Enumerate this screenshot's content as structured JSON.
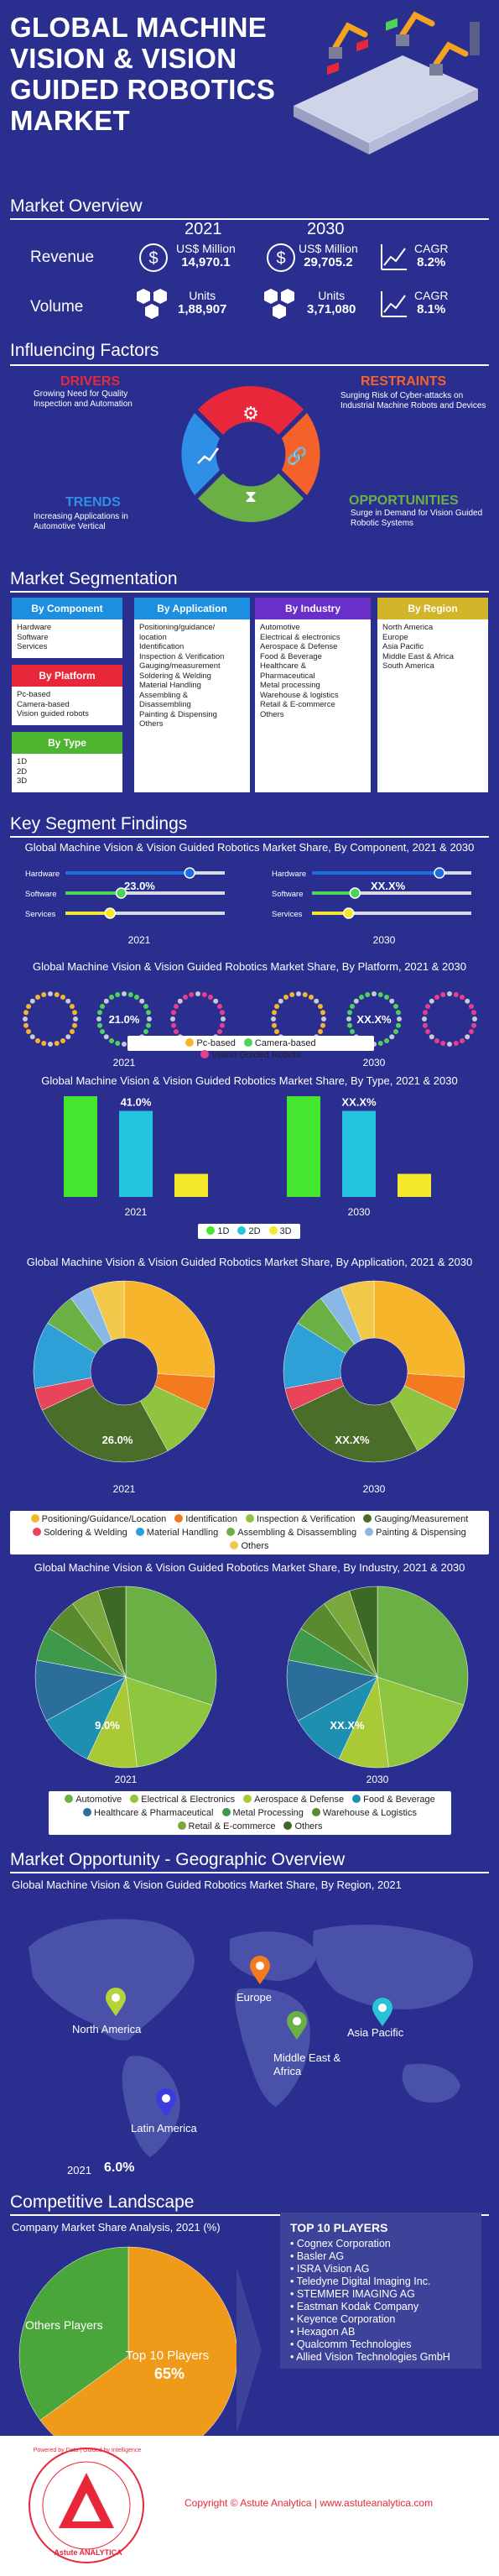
{
  "title_lines": [
    "GLOBAL MACHINE",
    "VISION & VISION",
    "GUIDED ROBOTICS",
    "MARKET"
  ],
  "overview": {
    "heading": "Market Overview",
    "year_a": "2021",
    "year_b": "2030",
    "revenue_label": "Revenue",
    "volume_label": "Volume",
    "revenue_unit": "US$ Million",
    "volume_unit": "Units",
    "revenue_2021": "14,970.1",
    "revenue_2030": "29,705.2",
    "volume_2021": "1,88,907",
    "volume_2030": "3,71,080",
    "cagr_label": "CAGR",
    "revenue_cagr": "8.2%",
    "volume_cagr": "8.1%"
  },
  "factors": {
    "heading": "Influencing Factors",
    "drivers_title": "DRIVERS",
    "drivers_text": "Growing Need for Quality Inspection and Automation",
    "restraints_title": "RESTRAINTS",
    "restraints_text": "Surging Risk of Cyber-attacks on Industrial Machine Robots and Devices",
    "trends_title": "TRENDS",
    "trends_text": "Increasing Applications in Automotive Vertical",
    "opportunities_title": "OPPORTUNITIES",
    "opportunities_text": "Surge in Demand for Vision Guided Robotic Systems",
    "colors": {
      "drivers": "#e8283a",
      "restraints": "#f4622a",
      "trends": "#2f8fe6",
      "opportunities": "#6ab045"
    }
  },
  "segmentation": {
    "heading": "Market Segmentation",
    "by_component": "By Component",
    "component_items": [
      "Hardware",
      "Software",
      "Services"
    ],
    "by_platform": "By Platform",
    "platform_items": [
      "Pc-based",
      "Camera-based",
      "Vision guided robots"
    ],
    "by_type": "By Type",
    "type_items": [
      "1D",
      "2D",
      "3D"
    ],
    "by_application": "By Application",
    "application_items": [
      "Positioning/guidance/",
      "location",
      "Identification",
      "Inspection & Verification",
      "Gauging/measurement",
      "Soldering & Welding",
      "Material Handling",
      "Assembling &",
      "Disassembling",
      "Painting & Dispensing",
      "Others"
    ],
    "by_industry": "By Industry",
    "industry_items": [
      "Automotive",
      "Electrical & electronics",
      "Aerospace & Defense",
      "Food & Beverage",
      "Healthcare &",
      "Pharmaceutical",
      "Metal processing",
      "Warehouse & logistics",
      "Retail & E-commerce",
      "Others"
    ],
    "by_region": "By Region",
    "region_items": [
      "North America",
      "Europe",
      "Asia Pacific",
      "Middle East & Africa",
      "South America"
    ]
  },
  "findings": {
    "heading": "Key Segment Findings",
    "year_a": "2021",
    "year_b": "2030",
    "hidden_value": "XX.X%"
  },
  "chart_data": [
    {
      "type": "bar",
      "title": "Global Machine Vision & Vision Guided Robotics Market Share, By Component, 2021 & 2030",
      "categories": [
        "Hardware",
        "Software",
        "Services"
      ],
      "labeled_value": "23.0%",
      "series": [
        {
          "values": [
            0.78,
            0.35,
            0.28
          ]
        },
        {
          "values": [
            0.8,
            0.27,
            0.23
          ]
        }
      ]
    },
    {
      "type": "pie",
      "title": "Global Machine Vision & Vision Guided Robotics Market Share, By Platform, 2021 & 2030",
      "categories": [
        "Pc-based",
        "Camera-based",
        "Vision Guided Robots"
      ],
      "colors": [
        "#f7b52b",
        "#4dd35a",
        "#e83e8c"
      ],
      "labeled_value": "21.0%"
    },
    {
      "type": "bar",
      "title": "Global Machine Vision & Vision Guided Robotics Market Share, By Type, 2021 & 2030",
      "categories": [
        "1D",
        "2D",
        "3D"
      ],
      "colors": [
        "#44e62e",
        "#24c3e0",
        "#f5e72a"
      ],
      "labeled_value": "41.0%",
      "series": [
        {
          "values": [
            48,
            41,
            11
          ]
        },
        {
          "values": [
            48,
            41,
            11
          ]
        }
      ]
    },
    {
      "type": "pie",
      "title": "Global Machine Vision & Vision Guided Robotics Market Share, By Application, 2021 & 2030",
      "categories": [
        "Positioning/Guidance/Location",
        "Identification",
        "Inspection & Verification",
        "Gauging/Measurement",
        "Soldering & Welding",
        "Material Handling",
        "Assembling & Disassembling",
        "Painting & Dispensing",
        "Others"
      ],
      "colors": [
        "#f7b52b",
        "#f47a20",
        "#90c43f",
        "#4a6e2a",
        "#e8455a",
        "#2f9fd8",
        "#6ab045",
        "#8ab8e6",
        "#f2c84b"
      ],
      "values": [
        26,
        6,
        10,
        26,
        4,
        12,
        6,
        4,
        6
      ],
      "labeled_value": "26.0%"
    },
    {
      "type": "pie",
      "title": "Global Machine Vision & Vision Guided Robotics Market Share, By Industry, 2021 & 2030",
      "categories": [
        "Automotive",
        "Electrical & Electronics",
        "Aerospace & Defense",
        "Food & Beverage",
        "Healthcare & Pharmaceutical",
        "Metal Processing",
        "Warehouse & Logistics",
        "Retail & E-commerce",
        "Others"
      ],
      "colors": [
        "#6ab045",
        "#8fc640",
        "#a9c937",
        "#1e8fb0",
        "#2c6e9b",
        "#3e9a4a",
        "#5a8a2e",
        "#7aa83c",
        "#3c6a25"
      ],
      "values": [
        30,
        18,
        9,
        10,
        11,
        6,
        6,
        5,
        5
      ],
      "labeled_value": "9.0%"
    }
  ],
  "opportunity": {
    "heading": "Market Opportunity - Geographic Overview",
    "chart_title": "Global Machine Vision & Vision Guided Robotics Market Share, By Region, 2021",
    "regions": [
      "North America",
      "Europe",
      "Asia Pacific",
      "Middle East & Africa",
      "Latin America"
    ],
    "region_colors": [
      "#b7d33a",
      "#f47a20",
      "#29c3d8",
      "#6ab045",
      "#3b3be0"
    ],
    "year": "2021",
    "value": "6.0%"
  },
  "competitive": {
    "heading": "Competitive Landscape",
    "chart_title": "Company Market Share Analysis, 2021 (%)",
    "others_label": "Others Players",
    "top10_label": "Top 10 Players",
    "top10_value": "65%",
    "top10_share": 65,
    "players_heading": "TOP 10 PLAYERS",
    "players": [
      "Cognex Corporation",
      "Basler AG",
      "ISRA Vision AG",
      "Teledyne Digital Imaging Inc.",
      "STEMMER IMAGING AG",
      "Eastman Kodak Company",
      "Keyence Corporation",
      "Hexagon AB",
      "Qualcomm Technologies",
      "Allied Vision Technologies GmbH"
    ]
  },
  "footer": {
    "copyright": "Copyright © Astute Analytica | www.astuteanalytica.com",
    "logo_text": "Astute ANALYTICA",
    "logo_ring": "Powered by Data | Guided by Intelligence"
  }
}
